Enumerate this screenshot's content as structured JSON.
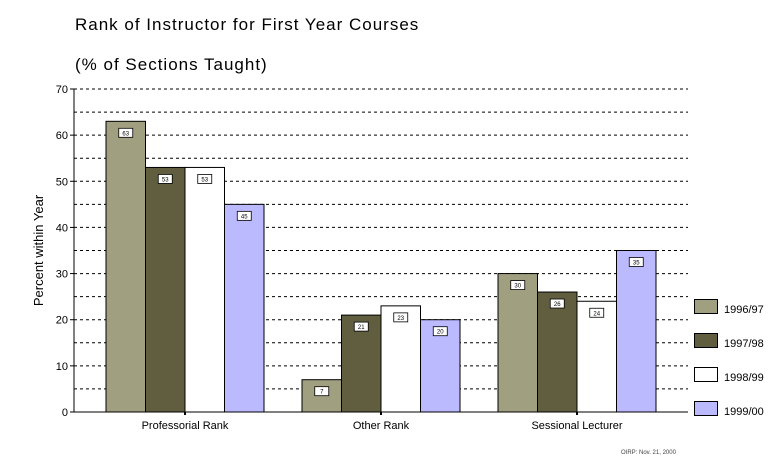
{
  "title_line1": "Rank of Instructor for First Year Courses",
  "title_line2": "(% of Sections Taught)",
  "footer": "OIRP: Nov. 21, 2000",
  "chart_data": {
    "type": "bar",
    "ylabel": "Percent within Year",
    "ylim": [
      0,
      70
    ],
    "yticks": [
      0,
      10,
      20,
      30,
      40,
      50,
      60,
      70
    ],
    "categories": [
      "Professorial Rank",
      "Other Rank",
      "Sessional Lecturer"
    ],
    "series": [
      {
        "name": "1996/97",
        "color": "#a09f80",
        "values": [
          63,
          7,
          30
        ],
        "labels": [
          "63",
          "7",
          "30"
        ]
      },
      {
        "name": "1997/98",
        "color": "#605e3e",
        "values": [
          53,
          21,
          26
        ],
        "labels": [
          "53",
          "21",
          "26"
        ]
      },
      {
        "name": "1998/99",
        "color": "#ffffff",
        "values": [
          53,
          23,
          24
        ],
        "labels": [
          "53",
          "23",
          "24"
        ]
      },
      {
        "name": "1999/00",
        "color": "#bcbaff",
        "values": [
          45,
          20,
          35
        ],
        "labels": [
          "45",
          "20",
          "35"
        ]
      }
    ],
    "grid": "dashed horizontal",
    "legend": "right"
  }
}
